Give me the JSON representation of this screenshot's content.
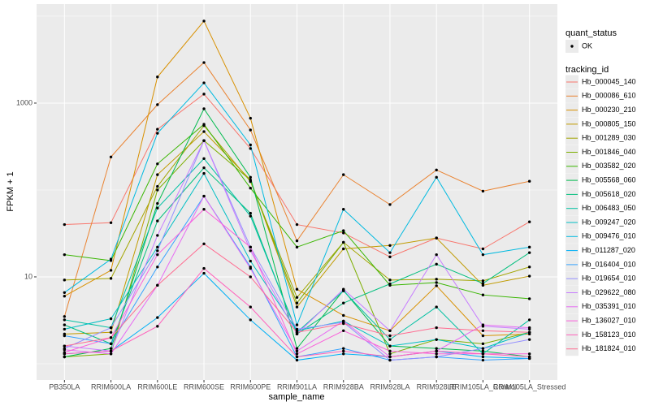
{
  "chart_data": {
    "type": "line",
    "x_label": "sample_name",
    "y_label": "FPKM + 1",
    "log_y": true,
    "ylim": [
      0.65,
      13800
    ],
    "yticks": [
      10,
      1000
    ],
    "y_minor_gridlines": [
      1,
      100,
      10000
    ],
    "grid": true,
    "point_color": "#000000",
    "point_legend": {
      "title": "quant_status",
      "labels": [
        "OK"
      ]
    },
    "legend_title": "tracking_id",
    "legend_position": "right",
    "categories": [
      "PB350LA",
      "RRIM600LA",
      "RRIM600LE",
      "RRIM600SE",
      "RRIM600PE",
      "RRIM901LA",
      "RRIM928BA",
      "RRIM928LA",
      "RRIM928LE",
      "RRIM105LA_Control",
      "RRIM105LA_Stressed"
    ],
    "series": [
      {
        "name": "Hb_000045_140",
        "color": "#F8766D",
        "values": [
          40,
          42,
          500,
          1270,
          300,
          40,
          32,
          17,
          28,
          21,
          43
        ]
      },
      {
        "name": "Hb_000086_610",
        "color": "#EA8331",
        "values": [
          3.5,
          240,
          960,
          2930,
          490,
          26,
          150,
          68,
          170,
          97,
          126
        ]
      },
      {
        "name": "Hb_000230_210",
        "color": "#D89000",
        "values": [
          6.0,
          11.9,
          2000,
          8800,
          670,
          7.2,
          3.6,
          2.4,
          7.9,
          2.1,
          2.2
        ]
      },
      {
        "name": "Hb_000805_150",
        "color": "#C09B00",
        "values": [
          2.2,
          2.3,
          150,
          470,
          130,
          4.5,
          21,
          23,
          28,
          8.0,
          10.2
        ]
      },
      {
        "name": "Hb_001289_030",
        "color": "#A3A500",
        "values": [
          9.2,
          9.6,
          110,
          550,
          125,
          5.8,
          25,
          9.2,
          9.4,
          9.0,
          13
        ]
      },
      {
        "name": "Hb_001846_040",
        "color": "#7CAE00",
        "values": [
          1.2,
          1.3,
          100,
          370,
          130,
          5.0,
          25,
          1.3,
          1.9,
          1.7,
          2.3
        ]
      },
      {
        "name": "Hb_003582_020",
        "color": "#39B600",
        "values": [
          18,
          15.4,
          200,
          570,
          105,
          22,
          34,
          8.0,
          8.6,
          6.2,
          5.6
        ]
      },
      {
        "name": "Hb_005568_060",
        "color": "#00BB4E",
        "values": [
          1.2,
          1.5,
          70,
          860,
          140,
          1.5,
          7.0,
          1.6,
          1.5,
          1.4,
          1.2
        ]
      },
      {
        "name": "Hb_005618_020",
        "color": "#00BF7D",
        "values": [
          2.8,
          1.7,
          44,
          180,
          54,
          2.2,
          5.0,
          8.3,
          14,
          8.4,
          19
        ]
      },
      {
        "name": "Hb_006483_050",
        "color": "#00C1A3",
        "values": [
          3.2,
          2.6,
          62,
          230,
          50,
          2.3,
          6.9,
          1.9,
          4.5,
          1.3,
          3.2
        ]
      },
      {
        "name": "Hb_009247_020",
        "color": "#00BFC4",
        "values": [
          2.5,
          3.3,
          22,
          155,
          15.2,
          2.4,
          3.1,
          1.6,
          1.9,
          1.5,
          2.3
        ]
      },
      {
        "name": "Hb_009476_010",
        "color": "#00BAE0",
        "values": [
          6.6,
          16,
          450,
          1710,
          330,
          2.8,
          60,
          19,
          140,
          18,
          22
        ]
      },
      {
        "name": "Hb_011287_020",
        "color": "#00B0F6",
        "values": [
          1.3,
          1.4,
          3.4,
          11,
          3.2,
          1.1,
          1.3,
          1.2,
          1.4,
          1.2,
          1.15
        ]
      },
      {
        "name": "Hb_016404_010",
        "color": "#35A2FF",
        "values": [
          2.1,
          1.7,
          13,
          85,
          13,
          1.2,
          1.5,
          1.1,
          1.2,
          1.1,
          1.15
        ]
      },
      {
        "name": "Hb_019654_010",
        "color": "#9590FF",
        "values": [
          1.5,
          2.6,
          20,
          370,
          22,
          2.5,
          3.0,
          1.1,
          1.2,
          1.5,
          1.9
        ]
      },
      {
        "name": "Hb_029622_080",
        "color": "#C77CFF",
        "values": [
          1.6,
          1.4,
          30,
          370,
          20,
          2.2,
          7.2,
          2.4,
          18,
          2.7,
          2.5
        ]
      },
      {
        "name": "Hb_035391_010",
        "color": "#E76BF3",
        "values": [
          1.45,
          1.3,
          8.0,
          85,
          12.5,
          1.4,
          3.1,
          1.2,
          1.4,
          2.8,
          2.6
        ]
      },
      {
        "name": "Hb_136027_010",
        "color": "#FA62DB",
        "values": [
          1.35,
          2.0,
          18,
          60,
          22,
          1.3,
          2.4,
          1.4,
          1.3,
          1.3,
          1.3
        ]
      },
      {
        "name": "Hb_158123_010",
        "color": "#FF62BC",
        "values": [
          1.3,
          1.4,
          2.7,
          12.5,
          4.5,
          1.2,
          1.4,
          1.2,
          1.4,
          1.3,
          1.2
        ]
      },
      {
        "name": "Hb_181824_010",
        "color": "#FF6C91",
        "values": [
          1.6,
          2.0,
          8.0,
          24,
          10,
          2.3,
          2.9,
          2.1,
          2.6,
          2.4,
          2.3
        ]
      }
    ]
  }
}
